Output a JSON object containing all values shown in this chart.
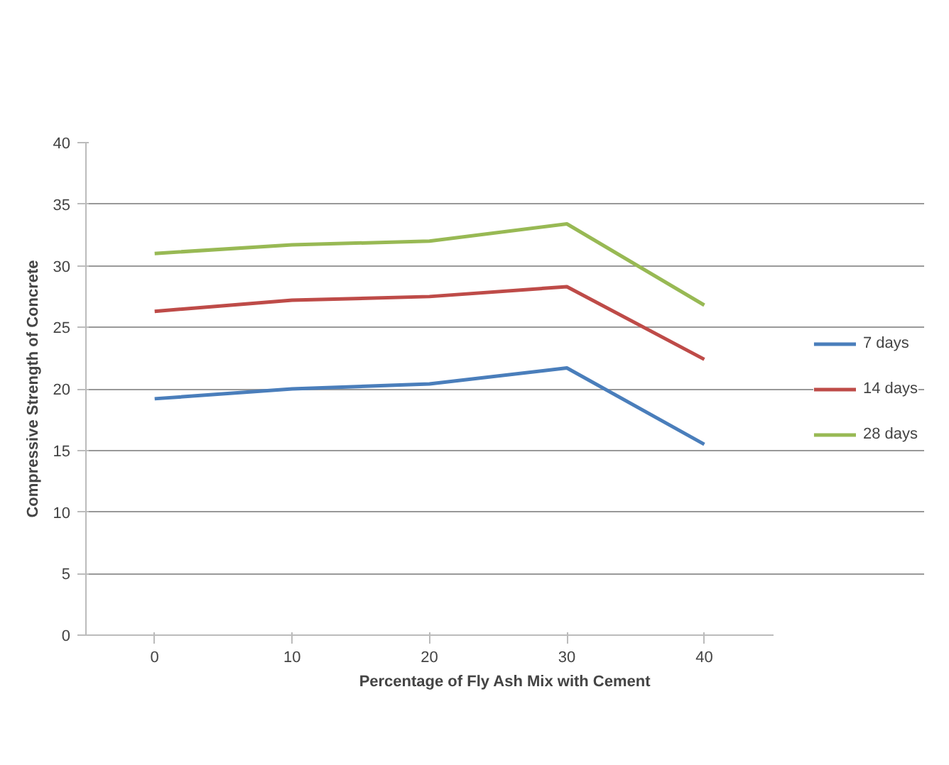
{
  "chart_data": {
    "type": "line",
    "xlabel": "Percentage of Fly Ash Mix with Cement",
    "ylabel": "Compressive Strength of Concrete",
    "categories": [
      "0",
      "10",
      "20",
      "30",
      "40"
    ],
    "series": [
      {
        "name": "7 days",
        "color": "#4a7ebb",
        "values": [
          19.2,
          20.0,
          20.4,
          21.7,
          15.5
        ]
      },
      {
        "name": "14 days",
        "color": "#be4b48",
        "values": [
          26.3,
          27.2,
          27.5,
          28.3,
          22.4
        ]
      },
      {
        "name": "28 days",
        "color": "#98b954",
        "values": [
          31.0,
          31.7,
          32.0,
          33.4,
          26.8
        ]
      }
    ],
    "ylim": [
      0,
      40
    ],
    "yticks": [
      0,
      5,
      10,
      15,
      20,
      25,
      30,
      35,
      40
    ],
    "grid": "y",
    "legend": "right",
    "marker": "none",
    "line_style": "solid"
  }
}
